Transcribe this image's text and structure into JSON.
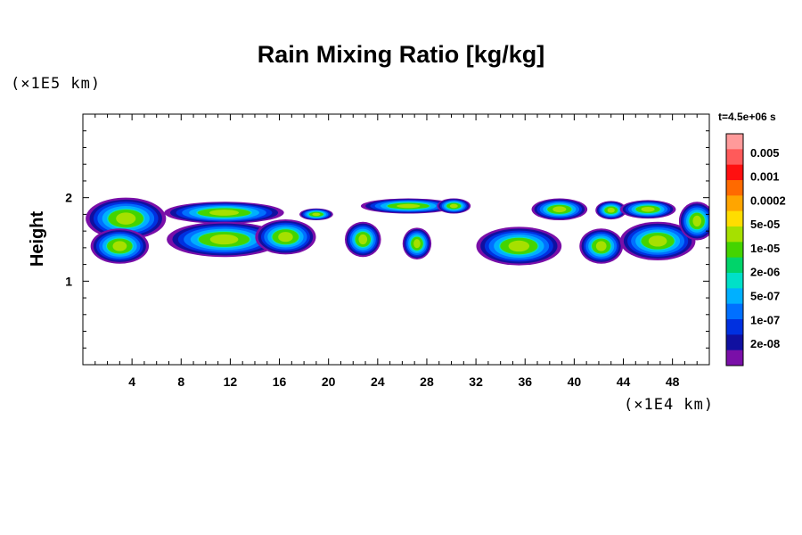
{
  "chart_data": {
    "type": "heatmap",
    "title": "Rain Mixing Ratio [kg/kg]",
    "xlabel": "",
    "ylabel": "Height",
    "x_multiplier": "(×1E4 km)",
    "y_multiplier": "(×1E5 km)",
    "time_label": "t=4.5e+06 s",
    "xlim": [
      0,
      51
    ],
    "ylim": [
      0,
      3
    ],
    "x_ticks": [
      "4",
      "8",
      "12",
      "16",
      "20",
      "24",
      "28",
      "32",
      "36",
      "40",
      "44",
      "48"
    ],
    "x_tick_values": [
      4,
      8,
      12,
      16,
      20,
      24,
      28,
      32,
      36,
      40,
      44,
      48
    ],
    "y_ticks": [
      "1",
      "2"
    ],
    "y_tick_values": [
      1,
      2
    ],
    "colorbar": {
      "labels": [
        "0.005",
        "0.001",
        "0.0002",
        "5e-05",
        "1e-05",
        "2e-06",
        "5e-07",
        "1e-07",
        "2e-08"
      ],
      "colors": [
        "#ff9a9a",
        "#ff5a5a",
        "#ff1010",
        "#ff6a00",
        "#ffa500",
        "#ffdd00",
        "#a6e000",
        "#44d400",
        "#00d46a",
        "#00e0c8",
        "#00b0ff",
        "#0070ff",
        "#0030e0",
        "#1010a0",
        "#7a0fa8"
      ]
    },
    "cells": [
      {
        "x": 3.5,
        "y": 1.75,
        "rx": 3.2,
        "ry": 0.24,
        "level": 7
      },
      {
        "x": 3.0,
        "y": 1.42,
        "rx": 2.3,
        "ry": 0.2,
        "level": 7
      },
      {
        "x": 11.5,
        "y": 1.82,
        "rx": 4.8,
        "ry": 0.12,
        "level": 7
      },
      {
        "x": 11.5,
        "y": 1.5,
        "rx": 4.6,
        "ry": 0.2,
        "level": 7
      },
      {
        "x": 16.5,
        "y": 1.53,
        "rx": 2.4,
        "ry": 0.2,
        "level": 7
      },
      {
        "x": 19.0,
        "y": 1.8,
        "rx": 1.3,
        "ry": 0.06,
        "level": 11
      },
      {
        "x": 22.8,
        "y": 1.5,
        "rx": 1.4,
        "ry": 0.2,
        "level": 10
      },
      {
        "x": 27.2,
        "y": 1.45,
        "rx": 1.1,
        "ry": 0.18,
        "level": 9
      },
      {
        "x": 26.5,
        "y": 1.9,
        "rx": 3.8,
        "ry": 0.08,
        "level": 11
      },
      {
        "x": 30.2,
        "y": 1.9,
        "rx": 1.3,
        "ry": 0.08,
        "level": 11
      },
      {
        "x": 35.5,
        "y": 1.42,
        "rx": 3.4,
        "ry": 0.22,
        "level": 7
      },
      {
        "x": 38.8,
        "y": 1.86,
        "rx": 2.2,
        "ry": 0.12,
        "level": 9
      },
      {
        "x": 42.2,
        "y": 1.42,
        "rx": 1.7,
        "ry": 0.2,
        "level": 8
      },
      {
        "x": 43.0,
        "y": 1.85,
        "rx": 1.2,
        "ry": 0.1,
        "level": 9
      },
      {
        "x": 46.0,
        "y": 1.86,
        "rx": 2.2,
        "ry": 0.1,
        "level": 9
      },
      {
        "x": 46.8,
        "y": 1.48,
        "rx": 3.0,
        "ry": 0.22,
        "level": 7
      },
      {
        "x": 50.0,
        "y": 1.72,
        "rx": 1.4,
        "ry": 0.22,
        "level": 9
      }
    ]
  }
}
